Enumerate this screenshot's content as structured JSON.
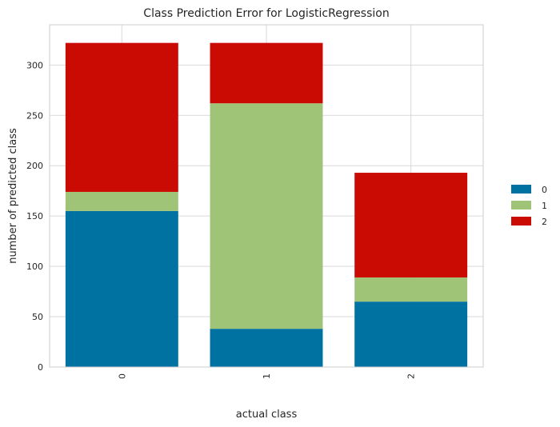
{
  "chart_data": {
    "type": "bar",
    "stacked": true,
    "title": "Class Prediction Error for LogisticRegression",
    "xlabel": "actual class",
    "ylabel": "number of predicted class",
    "categories": [
      "0",
      "1",
      "2"
    ],
    "series": [
      {
        "name": "0",
        "color": "#0072A2",
        "values": [
          155,
          38,
          65
        ]
      },
      {
        "name": "1",
        "color": "#9FC377",
        "values": [
          19,
          224,
          24
        ]
      },
      {
        "name": "2",
        "color": "#CA0B03",
        "values": [
          148,
          60,
          104
        ]
      }
    ],
    "yticks": [
      0,
      50,
      100,
      150,
      200,
      250,
      300
    ],
    "ylim": [
      0,
      340
    ],
    "grid": true,
    "legend": "right"
  }
}
